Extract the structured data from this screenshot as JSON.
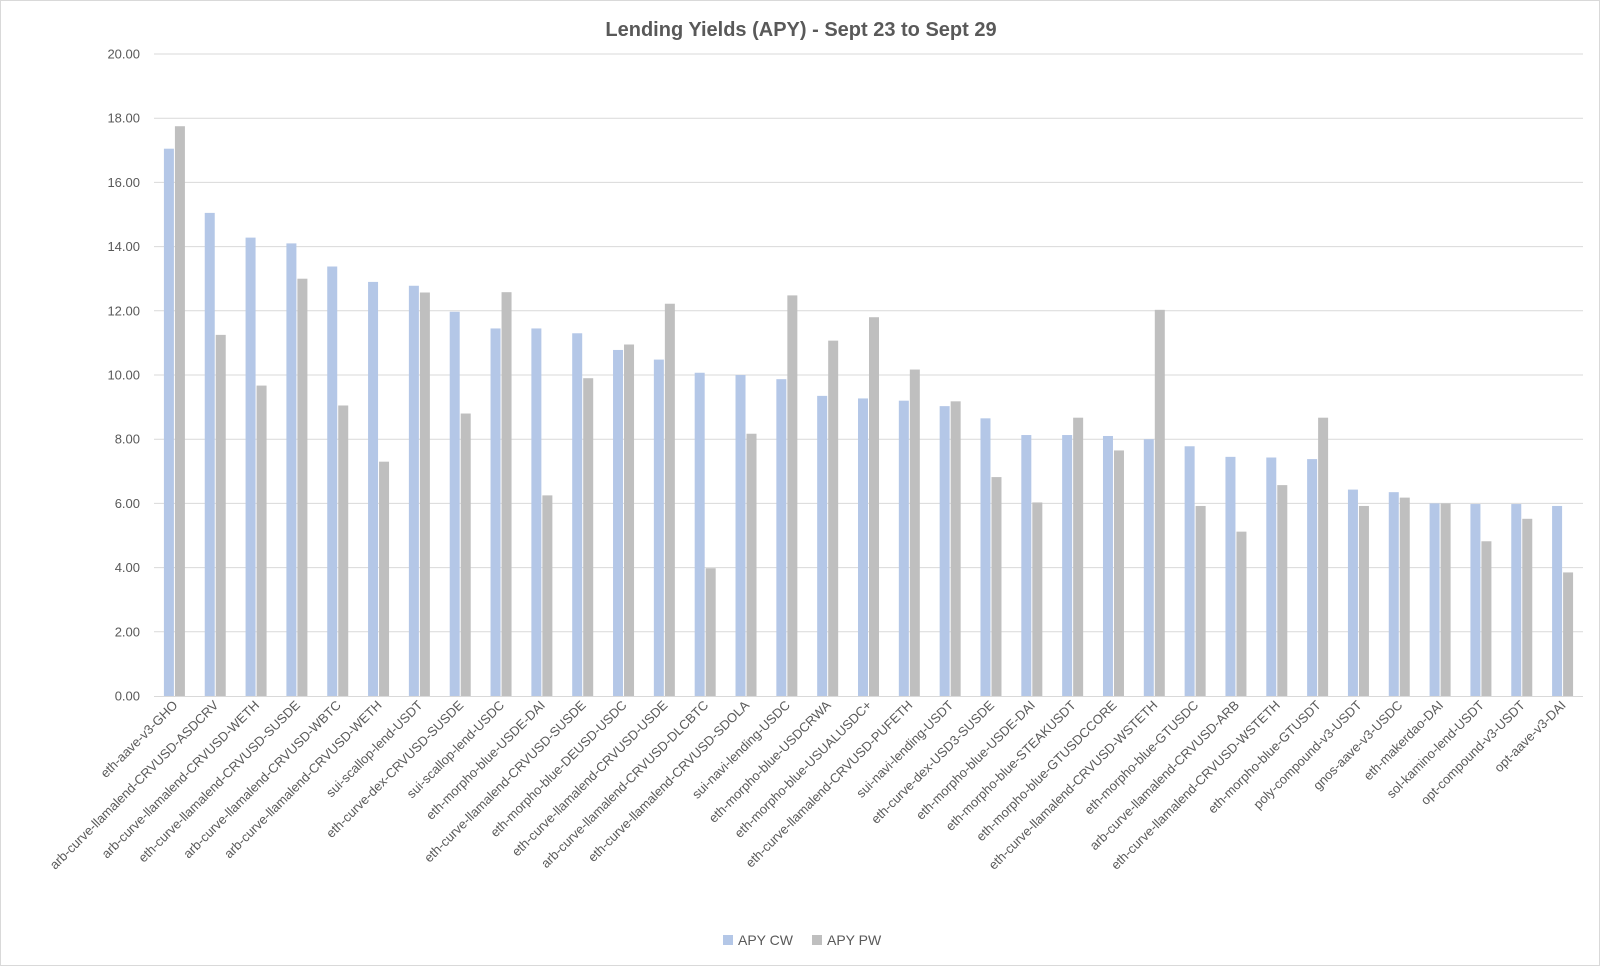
{
  "chart_data": {
    "type": "bar",
    "title": "Lending Yields (APY) - Sept 23 to Sept 29",
    "xlabel": "",
    "ylabel": "",
    "ylim": [
      0,
      20
    ],
    "yticks": [
      "0.00",
      "2.00",
      "4.00",
      "6.00",
      "8.00",
      "10.00",
      "12.00",
      "14.00",
      "16.00",
      "18.00",
      "20.00"
    ],
    "grid": true,
    "legend_position": "bottom",
    "categories": [
      "eth-aave-v3-GHO",
      "arb-curve-llamalend-CRVUSD-ASDCRV",
      "arb-curve-llamalend-CRVUSD-WETH",
      "eth-curve-llamalend-CRVUSD-SUSDE",
      "arb-curve-llamalend-CRVUSD-WBTC",
      "arb-curve-llamalend-CRVUSD-WETH",
      "sui-scallop-lend-USDT",
      "eth-curve-dex-CRVUSD-SUSDE",
      "sui-scallop-lend-USDC",
      "eth-morpho-blue-USDE-DAI",
      "eth-curve-llamalend-CRVUSD-SUSDE",
      "eth-morpho-blue-DEUSD-USDC",
      "eth-curve-llamalend-CRVUSD-USDE",
      "arb-curve-llamalend-CRVUSD-DLCBTC",
      "eth-curve-llamalend-CRVUSD-SDOLA",
      "sui-navi-lending-USDC",
      "eth-morpho-blue-USDCRWA",
      "eth-morpho-blue-USUALUSDC+",
      "eth-curve-llamalend-CRVUSD-PUFETH",
      "sui-navi-lending-USDT",
      "eth-curve-dex-USD3-SUSDE",
      "eth-morpho-blue-USDE-DAI",
      "eth-morpho-blue-STEAKUSDT",
      "eth-morpho-blue-GTUSDCCORE",
      "eth-curve-llamalend-CRVUSD-WSTETH",
      "eth-morpho-blue-GTUSDC",
      "arb-curve-llamalend-CRVUSD-ARB",
      "eth-curve-llamalend-CRVUSD-WSTETH",
      "eth-morpho-blue-GTUSDT",
      "poly-compound-v3-USDT",
      "gnos-aave-v3-USDC",
      "eth-makerdao-DAI",
      "sol-kamino-lend-USDT",
      "opt-compound-v3-USDT",
      "opt-aave-v3-DAI"
    ],
    "series": [
      {
        "name": "APY CW",
        "color": "#b4c7e7",
        "values": [
          17.05,
          15.05,
          14.28,
          14.1,
          13.38,
          12.9,
          12.78,
          11.97,
          11.45,
          11.45,
          11.3,
          10.78,
          10.48,
          10.07,
          10.0,
          9.87,
          9.35,
          9.27,
          9.2,
          9.03,
          8.65,
          8.13,
          8.13,
          8.1,
          8.0,
          7.78,
          7.45,
          7.43,
          7.38,
          6.43,
          6.35,
          6.0,
          5.98,
          5.98,
          5.92
        ]
      },
      {
        "name": "APY PW",
        "color": "#bfbfbf",
        "values": [
          17.75,
          11.25,
          9.67,
          13.0,
          9.05,
          7.3,
          12.57,
          8.8,
          12.58,
          6.25,
          9.9,
          10.95,
          12.22,
          3.98,
          8.17,
          12.48,
          11.07,
          11.8,
          10.17,
          9.18,
          6.82,
          6.03,
          8.67,
          7.65,
          12.03,
          5.92,
          5.12,
          6.57,
          8.67,
          5.92,
          6.18,
          6.0,
          4.82,
          5.52,
          3.85
        ]
      }
    ]
  }
}
